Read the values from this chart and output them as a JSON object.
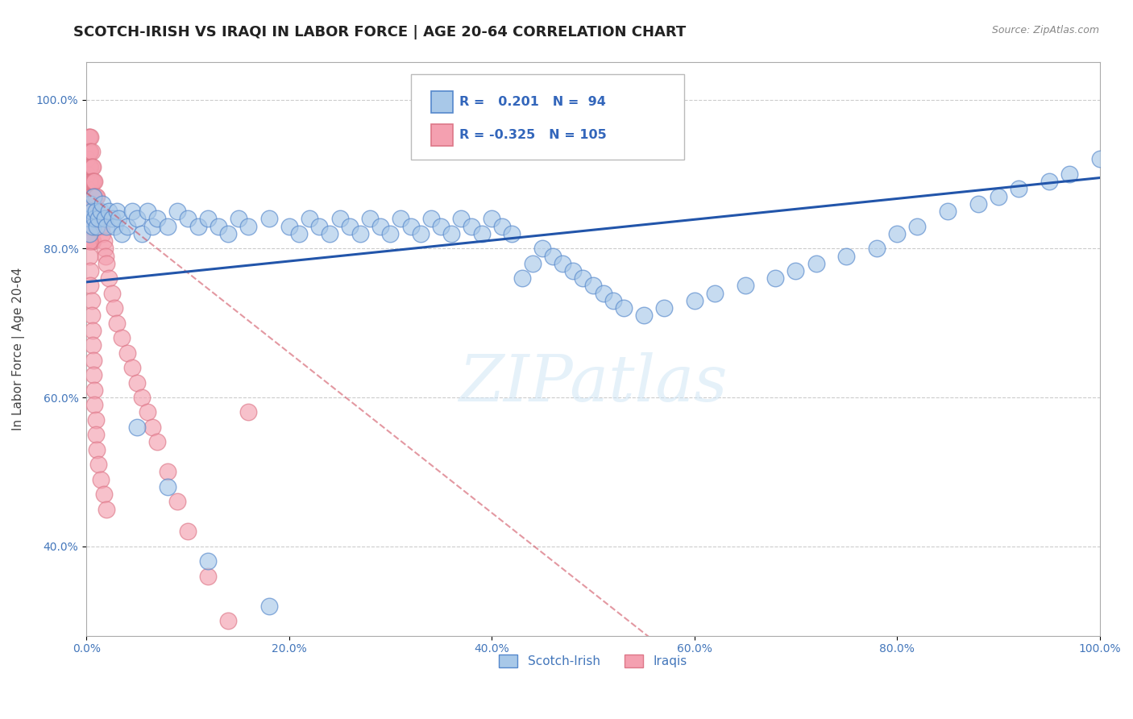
{
  "title": "SCOTCH-IRISH VS IRAQI IN LABOR FORCE | AGE 20-64 CORRELATION CHART",
  "source": "Source: ZipAtlas.com",
  "ylabel": "In Labor Force | Age 20-64",
  "xlim": [
    0.0,
    1.0
  ],
  "ylim": [
    0.28,
    1.05
  ],
  "xticks": [
    0.0,
    0.2,
    0.4,
    0.6,
    0.8,
    1.0
  ],
  "xtick_labels": [
    "0.0%",
    "20.0%",
    "40.0%",
    "60.0%",
    "80.0%",
    "100.0%"
  ],
  "yticks": [
    0.4,
    0.6,
    0.8,
    1.0
  ],
  "ytick_labels": [
    "40.0%",
    "60.0%",
    "80.0%",
    "100.0%"
  ],
  "legend_labels": [
    "Scotch-Irish",
    "Iraqis"
  ],
  "series1_color": "#a8c8e8",
  "series2_color": "#f4a0b0",
  "line1_color": "#2255aa",
  "line2_color": "#cc4455",
  "r1": 0.201,
  "n1": 94,
  "r2": -0.325,
  "n2": 105,
  "watermark": "ZIPatlas",
  "background_color": "#ffffff",
  "grid_color": "#cccccc",
  "title_fontsize": 13,
  "axis_fontsize": 11,
  "tick_fontsize": 10,
  "scotch_irish_x": [
    0.002,
    0.003,
    0.004,
    0.005,
    0.006,
    0.007,
    0.008,
    0.009,
    0.01,
    0.012,
    0.014,
    0.016,
    0.018,
    0.02,
    0.022,
    0.025,
    0.028,
    0.03,
    0.032,
    0.035,
    0.04,
    0.045,
    0.05,
    0.055,
    0.06,
    0.065,
    0.07,
    0.08,
    0.09,
    0.1,
    0.11,
    0.12,
    0.13,
    0.14,
    0.15,
    0.16,
    0.18,
    0.2,
    0.21,
    0.22,
    0.23,
    0.24,
    0.25,
    0.26,
    0.27,
    0.28,
    0.29,
    0.3,
    0.31,
    0.32,
    0.33,
    0.34,
    0.35,
    0.36,
    0.37,
    0.38,
    0.39,
    0.4,
    0.41,
    0.42,
    0.43,
    0.44,
    0.45,
    0.46,
    0.47,
    0.48,
    0.49,
    0.5,
    0.51,
    0.52,
    0.53,
    0.55,
    0.57,
    0.6,
    0.62,
    0.65,
    0.68,
    0.7,
    0.72,
    0.75,
    0.78,
    0.8,
    0.82,
    0.85,
    0.88,
    0.9,
    0.92,
    0.95,
    0.97,
    1.0,
    0.05,
    0.08,
    0.12,
    0.18
  ],
  "scotch_irish_y": [
    0.84,
    0.82,
    0.86,
    0.85,
    0.83,
    0.87,
    0.84,
    0.85,
    0.83,
    0.84,
    0.85,
    0.86,
    0.84,
    0.83,
    0.85,
    0.84,
    0.83,
    0.85,
    0.84,
    0.82,
    0.83,
    0.85,
    0.84,
    0.82,
    0.85,
    0.83,
    0.84,
    0.83,
    0.85,
    0.84,
    0.83,
    0.84,
    0.83,
    0.82,
    0.84,
    0.83,
    0.84,
    0.83,
    0.82,
    0.84,
    0.83,
    0.82,
    0.84,
    0.83,
    0.82,
    0.84,
    0.83,
    0.82,
    0.84,
    0.83,
    0.82,
    0.84,
    0.83,
    0.82,
    0.84,
    0.83,
    0.82,
    0.84,
    0.83,
    0.82,
    0.76,
    0.78,
    0.8,
    0.79,
    0.78,
    0.77,
    0.76,
    0.75,
    0.74,
    0.73,
    0.72,
    0.71,
    0.72,
    0.73,
    0.74,
    0.75,
    0.76,
    0.77,
    0.78,
    0.79,
    0.8,
    0.82,
    0.83,
    0.85,
    0.86,
    0.87,
    0.88,
    0.89,
    0.9,
    0.92,
    0.56,
    0.48,
    0.38,
    0.32
  ],
  "iraqi_x": [
    0.001,
    0.001,
    0.001,
    0.001,
    0.002,
    0.002,
    0.002,
    0.002,
    0.003,
    0.003,
    0.003,
    0.003,
    0.003,
    0.003,
    0.003,
    0.003,
    0.003,
    0.003,
    0.003,
    0.004,
    0.004,
    0.004,
    0.004,
    0.004,
    0.004,
    0.004,
    0.004,
    0.005,
    0.005,
    0.005,
    0.005,
    0.005,
    0.005,
    0.005,
    0.006,
    0.006,
    0.006,
    0.006,
    0.006,
    0.006,
    0.007,
    0.007,
    0.007,
    0.007,
    0.008,
    0.008,
    0.008,
    0.008,
    0.009,
    0.009,
    0.009,
    0.01,
    0.01,
    0.01,
    0.011,
    0.011,
    0.012,
    0.012,
    0.013,
    0.014,
    0.015,
    0.016,
    0.017,
    0.018,
    0.019,
    0.02,
    0.022,
    0.025,
    0.028,
    0.03,
    0.035,
    0.04,
    0.045,
    0.05,
    0.055,
    0.06,
    0.065,
    0.07,
    0.08,
    0.09,
    0.1,
    0.12,
    0.14,
    0.16,
    0.002,
    0.002,
    0.003,
    0.003,
    0.004,
    0.004,
    0.005,
    0.005,
    0.006,
    0.006,
    0.007,
    0.007,
    0.008,
    0.008,
    0.009,
    0.009,
    0.01,
    0.012,
    0.014,
    0.017,
    0.02
  ],
  "iraqi_y": [
    0.92,
    0.9,
    0.88,
    0.86,
    0.95,
    0.93,
    0.91,
    0.89,
    0.95,
    0.93,
    0.91,
    0.89,
    0.87,
    0.85,
    0.83,
    0.81,
    0.93,
    0.91,
    0.89,
    0.95,
    0.93,
    0.91,
    0.89,
    0.87,
    0.85,
    0.83,
    0.81,
    0.93,
    0.91,
    0.89,
    0.87,
    0.85,
    0.83,
    0.81,
    0.91,
    0.89,
    0.87,
    0.85,
    0.83,
    0.81,
    0.89,
    0.87,
    0.85,
    0.83,
    0.89,
    0.87,
    0.85,
    0.83,
    0.87,
    0.85,
    0.83,
    0.87,
    0.85,
    0.83,
    0.85,
    0.83,
    0.85,
    0.83,
    0.83,
    0.83,
    0.83,
    0.82,
    0.81,
    0.8,
    0.79,
    0.78,
    0.76,
    0.74,
    0.72,
    0.7,
    0.68,
    0.66,
    0.64,
    0.62,
    0.6,
    0.58,
    0.56,
    0.54,
    0.5,
    0.46,
    0.42,
    0.36,
    0.3,
    0.58,
    0.85,
    0.83,
    0.81,
    0.79,
    0.77,
    0.75,
    0.73,
    0.71,
    0.69,
    0.67,
    0.65,
    0.63,
    0.61,
    0.59,
    0.57,
    0.55,
    0.53,
    0.51,
    0.49,
    0.47,
    0.45
  ]
}
